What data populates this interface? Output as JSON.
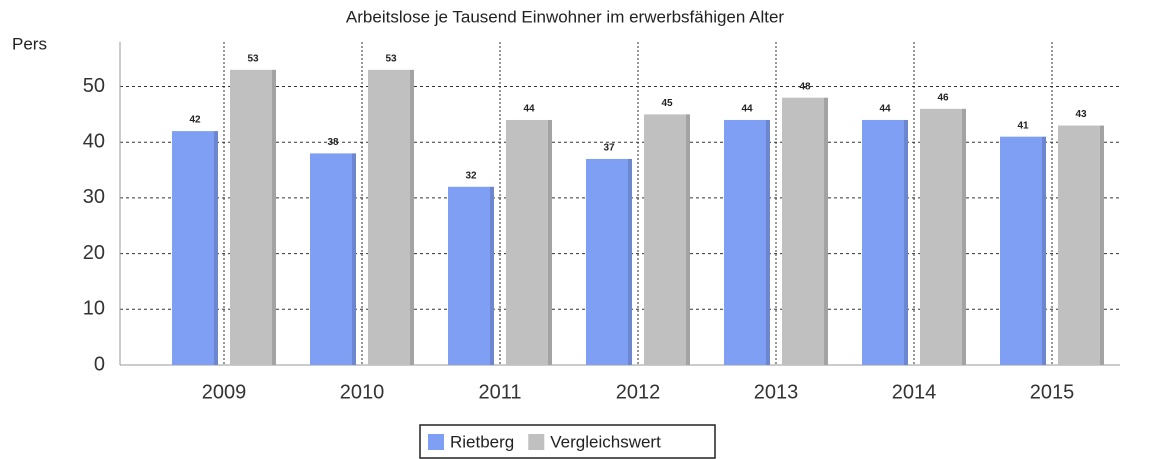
{
  "chart_data": {
    "type": "bar",
    "title": "Arbeitslose je Tausend Einwohner im erwerbsfähigen Alter",
    "y_label": "Pers",
    "categories": [
      "2009",
      "2010",
      "2011",
      "2012",
      "2013",
      "2014",
      "2015"
    ],
    "series": [
      {
        "name": "Rietberg",
        "color": "#7f9ff5",
        "values": [
          42,
          38,
          32,
          37,
          44,
          44,
          41
        ]
      },
      {
        "name": "Vergleichswert",
        "color": "#c0c0c0",
        "values": [
          53,
          53,
          44,
          45,
          48,
          46,
          43
        ]
      }
    ],
    "ylim": [
      0,
      58
    ],
    "yticks": [
      0,
      10,
      20,
      30,
      40,
      50
    ],
    "grid": true,
    "legend": "bottom"
  }
}
